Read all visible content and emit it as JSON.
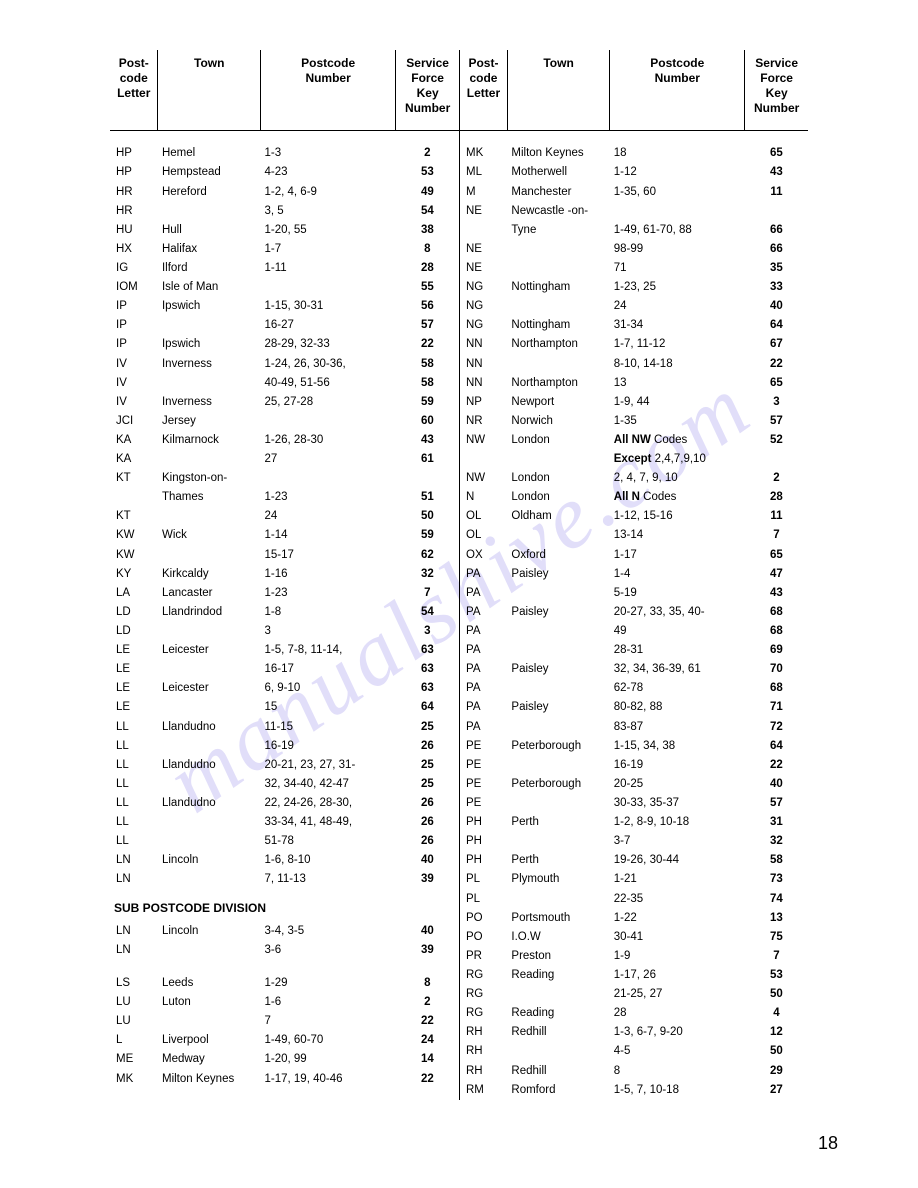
{
  "watermark_text": "manualshive.com",
  "page_number": "18",
  "headers": {
    "letter": "Post-\ncode\nLetter",
    "town": "Town",
    "number": "Postcode\nNumber",
    "key": "Service\nForce\nKey\nNumber"
  },
  "left": {
    "rows": [
      {
        "l": "HP",
        "t": "Hemel",
        "n": "1-3",
        "k": "2"
      },
      {
        "l": "HP",
        "t": "Hempstead",
        "n": "4-23",
        "k": "53"
      },
      {
        "l": "HR",
        "t": "Hereford",
        "n": "1-2, 4, 6-9",
        "k": "49"
      },
      {
        "l": "HR",
        "t": "",
        "n": "3, 5",
        "k": "54"
      },
      {
        "l": "HU",
        "t": "Hull",
        "n": "1-20, 55",
        "k": "38"
      },
      {
        "l": "HX",
        "t": "Halifax",
        "n": "1-7",
        "k": "8"
      },
      {
        "l": "IG",
        "t": "Ilford",
        "n": "1-11",
        "k": "28"
      },
      {
        "l": "IOM",
        "t": "Isle of Man",
        "n": "",
        "k": "55"
      },
      {
        "l": "IP",
        "t": "Ipswich",
        "n": "1-15, 30-31",
        "k": "56"
      },
      {
        "l": "IP",
        "t": "",
        "n": "16-27",
        "k": "57"
      },
      {
        "l": "IP",
        "t": "Ipswich",
        "n": "28-29, 32-33",
        "k": "22"
      },
      {
        "l": "IV",
        "t": "Inverness",
        "n": "1-24, 26, 30-36,",
        "k": "58"
      },
      {
        "l": "IV",
        "t": "",
        "n": "40-49, 51-56",
        "k": "58"
      },
      {
        "l": "IV",
        "t": "Inverness",
        "n": "25, 27-28",
        "k": "59"
      },
      {
        "l": "JCI",
        "t": "Jersey",
        "n": "",
        "k": "60"
      },
      {
        "l": "KA",
        "t": "Kilmarnock",
        "n": "1-26, 28-30",
        "k": "43"
      },
      {
        "l": "KA",
        "t": "",
        "n": "27",
        "k": "61"
      },
      {
        "l": "KT",
        "t": "Kingston-on-",
        "n": "",
        "k": ""
      },
      {
        "l": "",
        "t": "Thames",
        "n": "1-23",
        "k": "51"
      },
      {
        "l": "KT",
        "t": "",
        "n": "24",
        "k": "50"
      },
      {
        "l": "KW",
        "t": "Wick",
        "n": "1-14",
        "k": "59"
      },
      {
        "l": "KW",
        "t": "",
        "n": "15-17",
        "k": "62"
      },
      {
        "l": "KY",
        "t": "Kirkcaldy",
        "n": "1-16",
        "k": "32"
      },
      {
        "l": "LA",
        "t": "Lancaster",
        "n": "1-23",
        "k": "7"
      },
      {
        "l": "LD",
        "t": "Llandrindod",
        "n": "1-8",
        "k": "54"
      },
      {
        "l": "LD",
        "t": "",
        "n": "3",
        "k": "3"
      },
      {
        "l": "LE",
        "t": "Leicester",
        "n": "1-5, 7-8, 11-14,",
        "k": "63"
      },
      {
        "l": "LE",
        "t": "",
        "n": "16-17",
        "k": "63"
      },
      {
        "l": "LE",
        "t": "Leicester",
        "n": "6, 9-10",
        "k": "63"
      },
      {
        "l": "LE",
        "t": "",
        "n": "15",
        "k": "64"
      },
      {
        "l": "LL",
        "t": "Llandudno",
        "n": "11-15",
        "k": "25"
      },
      {
        "l": "LL",
        "t": "",
        "n": "16-19",
        "k": "26"
      },
      {
        "l": "LL",
        "t": "Llandudno",
        "n": "20-21, 23, 27, 31-",
        "k": "25"
      },
      {
        "l": "LL",
        "t": "",
        "n": "32, 34-40, 42-47",
        "k": "25"
      },
      {
        "l": "LL",
        "t": "Llandudno",
        "n": "22, 24-26, 28-30,",
        "k": "26"
      },
      {
        "l": "LL",
        "t": "",
        "n": "33-34, 41, 48-49,",
        "k": "26"
      },
      {
        "l": "LL",
        "t": "",
        "n": "51-78",
        "k": "26"
      },
      {
        "l": "LN",
        "t": "Lincoln",
        "n": "1-6, 8-10",
        "k": "40"
      },
      {
        "l": "LN",
        "t": "",
        "n": "7, 11-13",
        "k": "39"
      }
    ],
    "subhead": "SUB POSTCODE DIVISION",
    "rows2": [
      {
        "l": "LN",
        "t": "Lincoln",
        "n": "3-4, 3-5",
        "k": "40"
      },
      {
        "l": "LN",
        "t": "",
        "n": "3-6",
        "k": "39"
      }
    ],
    "rows3": [
      {
        "l": "LS",
        "t": "Leeds",
        "n": "1-29",
        "k": "8"
      },
      {
        "l": "LU",
        "t": "Luton",
        "n": "1-6",
        "k": "2"
      },
      {
        "l": "LU",
        "t": "",
        "n": "7",
        "k": "22"
      },
      {
        "l": "L",
        "t": "Liverpool",
        "n": "1-49, 60-70",
        "k": "24"
      },
      {
        "l": "ME",
        "t": "Medway",
        "n": "1-20, 99",
        "k": "14"
      },
      {
        "l": "MK",
        "t": "Milton Keynes",
        "n": "1-17, 19, 40-46",
        "k": "22"
      }
    ]
  },
  "right": {
    "rows": [
      {
        "l": "MK",
        "t": "Milton Keynes",
        "n": "18",
        "k": "65"
      },
      {
        "l": "ML",
        "t": "Motherwell",
        "n": "1-12",
        "k": "43"
      },
      {
        "l": "M",
        "t": "Manchester",
        "n": "1-35, 60",
        "k": "11"
      },
      {
        "l": "NE",
        "t": "Newcastle -on-",
        "n": "",
        "k": ""
      },
      {
        "l": "",
        "t": "Tyne",
        "n": "1-49, 61-70, 88",
        "k": "66"
      },
      {
        "l": "NE",
        "t": "",
        "n": "98-99",
        "k": "66"
      },
      {
        "l": "NE",
        "t": "",
        "n": "71",
        "k": "35"
      },
      {
        "l": "NG",
        "t": "Nottingham",
        "n": "1-23, 25",
        "k": "33"
      },
      {
        "l": "NG",
        "t": "",
        "n": "24",
        "k": "40"
      },
      {
        "l": "NG",
        "t": "Nottingham",
        "n": "31-34",
        "k": "64"
      },
      {
        "l": "NN",
        "t": "Northampton",
        "n": "1-7, 11-12",
        "k": "67"
      },
      {
        "l": "NN",
        "t": "",
        "n": "8-10, 14-18",
        "k": "22"
      },
      {
        "l": "NN",
        "t": "Northampton",
        "n": "13",
        "k": "65"
      },
      {
        "l": "NP",
        "t": "Newport",
        "n": "1-9, 44",
        "k": "3"
      },
      {
        "l": "NR",
        "t": "Norwich",
        "n": "1-35",
        "k": "57"
      },
      {
        "l": "NW",
        "t": "London",
        "n": "All NW Codes",
        "k": "52",
        "bold_n": true
      },
      {
        "l": "",
        "t": "",
        "n": "Except 2,4,7,9,10",
        "k": "",
        "bold_n": true
      },
      {
        "l": "NW",
        "t": "London",
        "n": "2, 4, 7, 9, 10",
        "k": "2"
      },
      {
        "l": "N",
        "t": "London",
        "n": "All N Codes",
        "k": "28",
        "bold_n": true
      },
      {
        "l": "OL",
        "t": "Oldham",
        "n": "1-12, 15-16",
        "k": "11"
      },
      {
        "l": "OL",
        "t": "",
        "n": "13-14",
        "k": "7"
      },
      {
        "l": "OX",
        "t": "Oxford",
        "n": "1-17",
        "k": "65"
      },
      {
        "l": "PA",
        "t": "Paisley",
        "n": "1-4",
        "k": "47"
      },
      {
        "l": "PA",
        "t": "",
        "n": "5-19",
        "k": "43"
      },
      {
        "l": "PA",
        "t": "Paisley",
        "n": "20-27, 33, 35, 40-",
        "k": "68"
      },
      {
        "l": "PA",
        "t": "",
        "n": "49",
        "k": "68"
      },
      {
        "l": "PA",
        "t": "",
        "n": "28-31",
        "k": "69"
      },
      {
        "l": "PA",
        "t": "Paisley",
        "n": "32, 34, 36-39, 61",
        "k": "70"
      },
      {
        "l": "PA",
        "t": "",
        "n": "62-78",
        "k": "68"
      },
      {
        "l": "PA",
        "t": "Paisley",
        "n": "80-82, 88",
        "k": "71"
      },
      {
        "l": "PA",
        "t": "",
        "n": "83-87",
        "k": "72"
      },
      {
        "l": "PE",
        "t": "Peterborough",
        "n": "1-15, 34, 38",
        "k": "64"
      },
      {
        "l": "PE",
        "t": "",
        "n": "16-19",
        "k": "22"
      },
      {
        "l": "PE",
        "t": "Peterborough",
        "n": "20-25",
        "k": "40"
      },
      {
        "l": "PE",
        "t": "",
        "n": "30-33, 35-37",
        "k": "57"
      },
      {
        "l": "PH",
        "t": "Perth",
        "n": "1-2, 8-9, 10-18",
        "k": "31"
      },
      {
        "l": "PH",
        "t": "",
        "n": "3-7",
        "k": "32"
      },
      {
        "l": "PH",
        "t": "Perth",
        "n": "19-26, 30-44",
        "k": "58"
      },
      {
        "l": "PL",
        "t": "Plymouth",
        "n": "1-21",
        "k": "73"
      },
      {
        "l": "PL",
        "t": "",
        "n": "22-35",
        "k": "74"
      },
      {
        "l": "PO",
        "t": "Portsmouth",
        "n": "1-22",
        "k": "13"
      },
      {
        "l": "PO",
        "t": "I.O.W",
        "n": "30-41",
        "k": "75"
      },
      {
        "l": "PR",
        "t": "Preston",
        "n": "1-9",
        "k": "7"
      },
      {
        "l": "RG",
        "t": "Reading",
        "n": "1-17, 26",
        "k": "53"
      },
      {
        "l": "RG",
        "t": "",
        "n": "21-25, 27",
        "k": "50"
      },
      {
        "l": "RG",
        "t": "Reading",
        "n": "28",
        "k": "4"
      },
      {
        "l": "RH",
        "t": "Redhill",
        "n": "1-3, 6-7, 9-20",
        "k": "12"
      },
      {
        "l": "RH",
        "t": "",
        "n": "4-5",
        "k": "50"
      },
      {
        "l": "RH",
        "t": "Redhill",
        "n": "8",
        "k": "29"
      },
      {
        "l": "RM",
        "t": "Romford",
        "n": "1-5, 7, 10-18",
        "k": "27"
      }
    ]
  }
}
